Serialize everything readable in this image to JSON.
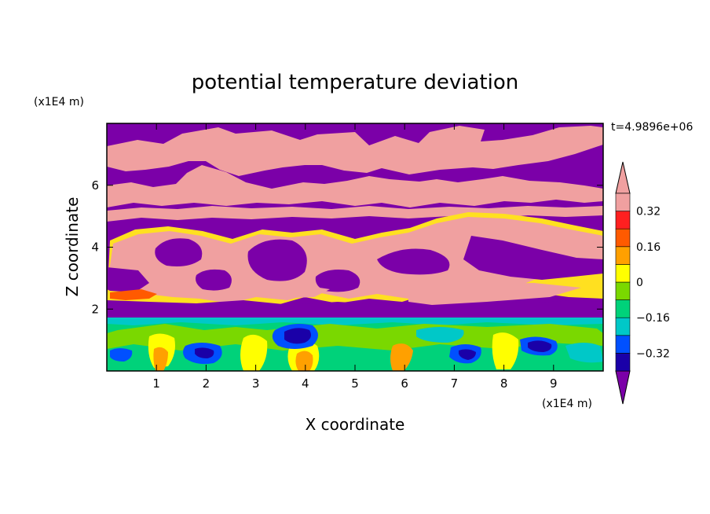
{
  "chart_data": {
    "type": "heatmap",
    "title": "potential temperature deviation",
    "xlabel": "X coordinate",
    "ylabel": "Z coordinate",
    "x_unit": "(x1E4 m)",
    "y_unit": "(x1E4 m)",
    "time_label": "t=4.9896e+06",
    "xlim": [
      0,
      10
    ],
    "ylim": [
      0,
      8
    ],
    "xticks": [
      1,
      2,
      3,
      4,
      5,
      6,
      7,
      8,
      9
    ],
    "yticks": [
      2,
      4,
      6
    ],
    "colorbar": {
      "levels": [
        -0.4,
        -0.32,
        -0.24,
        -0.16,
        -0.08,
        0,
        0.08,
        0.16,
        0.24,
        0.32,
        0.4
      ],
      "tick_labels": [
        "0.32",
        "0.16",
        "0",
        "−0.16",
        "−0.32"
      ],
      "tick_values": [
        0.32,
        0.16,
        0,
        -0.16,
        -0.32
      ],
      "colors": [
        "#7b00a8",
        "#1a00a8",
        "#0050ff",
        "#00c8c8",
        "#00d27a",
        "#7ad800",
        "#ffff00",
        "#ffa000",
        "#ff5a00",
        "#ff2020",
        "#f0a0a0"
      ],
      "extend": "both"
    }
  }
}
